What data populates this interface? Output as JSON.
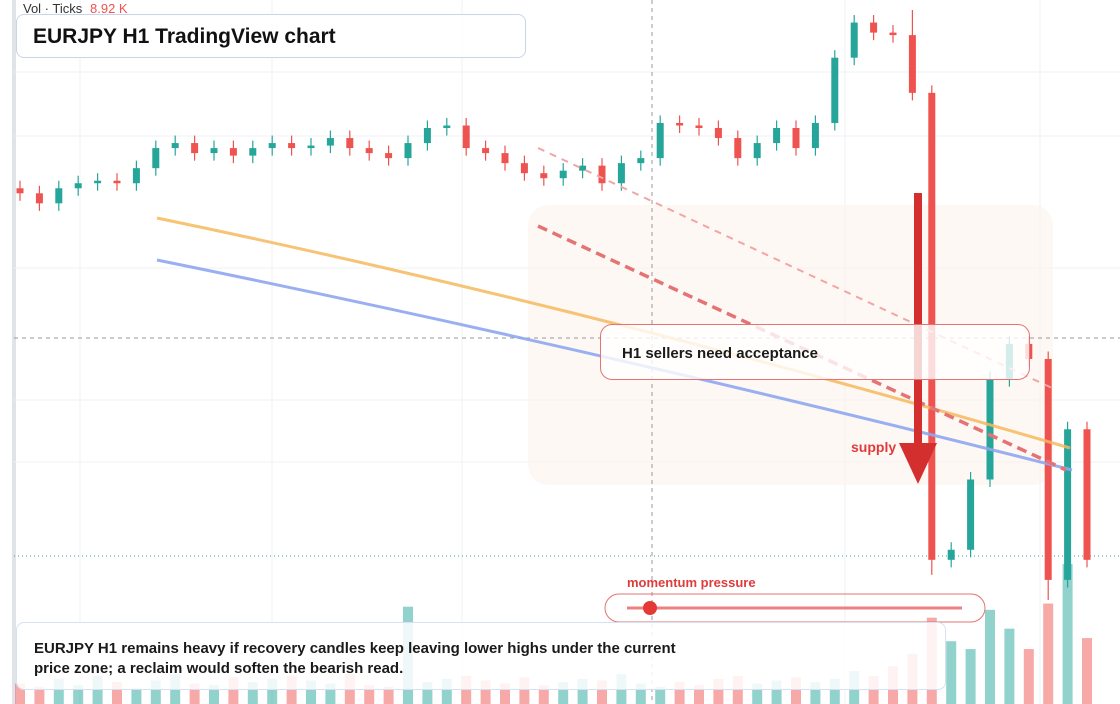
{
  "header": {
    "indicator": "Vol · Ticks",
    "indicator_value": "8.92 K",
    "title": "EURJPY H1 TradingView chart"
  },
  "annotations": {
    "callout": "H1 sellers need acceptance",
    "zone": "supply",
    "meter": "momentum pressure",
    "caption": "EURJPY H1 remains heavy if recovery candles keep leaving lower highs under the current price zone; a reclaim would soften the bearish read."
  },
  "chart_data": {
    "type": "candlestick",
    "open": [
      164.24,
      164.22,
      164.18,
      164.24,
      164.26,
      164.27,
      164.26,
      164.32,
      164.4,
      164.42,
      164.38,
      164.4,
      164.37,
      164.4,
      164.42,
      164.4,
      164.41,
      164.44,
      164.4,
      164.38,
      164.36,
      164.42,
      164.48,
      164.49,
      164.4,
      164.38,
      164.34,
      164.3,
      164.28,
      164.31,
      164.33,
      164.26,
      164.34,
      164.36,
      164.5,
      164.49,
      164.48,
      164.44,
      164.36,
      164.42,
      164.48,
      164.4,
      164.5,
      164.76,
      164.9,
      164.86,
      164.85,
      164.62,
      162.76,
      162.8,
      163.08,
      163.48,
      163.62,
      163.56,
      162.68,
      163.28
    ],
    "high": [
      164.27,
      164.25,
      164.27,
      164.29,
      164.3,
      164.3,
      164.35,
      164.43,
      164.45,
      164.45,
      164.43,
      164.43,
      164.43,
      164.45,
      164.45,
      164.44,
      164.47,
      164.47,
      164.43,
      164.41,
      164.45,
      164.51,
      164.52,
      164.52,
      164.43,
      164.41,
      164.37,
      164.33,
      164.34,
      164.36,
      164.36,
      164.37,
      164.39,
      164.53,
      164.53,
      164.52,
      164.51,
      164.47,
      164.45,
      164.51,
      164.51,
      164.53,
      164.79,
      164.93,
      164.93,
      164.89,
      164.95,
      164.65,
      162.83,
      163.11,
      163.51,
      163.65,
      163.65,
      163.59,
      163.31,
      163.31
    ],
    "low": [
      164.19,
      164.15,
      164.15,
      164.21,
      164.23,
      164.23,
      164.23,
      164.29,
      164.37,
      164.35,
      164.35,
      164.34,
      164.34,
      164.37,
      164.37,
      164.37,
      164.38,
      164.37,
      164.35,
      164.33,
      164.33,
      164.39,
      164.45,
      164.37,
      164.35,
      164.31,
      164.27,
      164.25,
      164.25,
      164.28,
      164.23,
      164.23,
      164.31,
      164.33,
      164.46,
      164.45,
      164.41,
      164.33,
      164.33,
      164.39,
      164.37,
      164.37,
      164.47,
      164.73,
      164.83,
      164.82,
      164.59,
      162.7,
      162.73,
      162.77,
      163.05,
      163.45,
      163.53,
      162.6,
      162.65,
      162.73
    ],
    "close": [
      164.22,
      164.18,
      164.24,
      164.26,
      164.27,
      164.26,
      164.32,
      164.4,
      164.42,
      164.38,
      164.4,
      164.37,
      164.4,
      164.42,
      164.4,
      164.41,
      164.44,
      164.4,
      164.38,
      164.36,
      164.42,
      164.48,
      164.49,
      164.4,
      164.38,
      164.34,
      164.3,
      164.28,
      164.31,
      164.33,
      164.26,
      164.34,
      164.36,
      164.5,
      164.49,
      164.48,
      164.44,
      164.36,
      164.42,
      164.48,
      164.4,
      164.5,
      164.76,
      164.9,
      164.86,
      164.85,
      164.62,
      162.76,
      162.8,
      163.08,
      163.48,
      163.62,
      163.56,
      162.68,
      163.28,
      162.76
    ],
    "volume": [
      1.3,
      1.1,
      1.6,
      1.2,
      1.8,
      1.4,
      1.0,
      1.5,
      1.9,
      1.3,
      1.2,
      1.7,
      1.4,
      1.6,
      1.8,
      1.5,
      1.3,
      1.9,
      1.2,
      1.1,
      6.2,
      1.4,
      1.6,
      1.8,
      1.5,
      1.3,
      1.7,
      1.2,
      1.4,
      1.6,
      1.5,
      1.9,
      1.3,
      1.1,
      1.4,
      1.2,
      1.6,
      1.8,
      1.3,
      1.5,
      1.7,
      1.4,
      1.6,
      2.1,
      1.8,
      2.4,
      3.2,
      5.5,
      4.0,
      3.5,
      6.0,
      4.8,
      3.5,
      6.4,
      8.92,
      4.2
    ],
    "up_color": "#26a69a",
    "down_color": "#ef5350"
  }
}
